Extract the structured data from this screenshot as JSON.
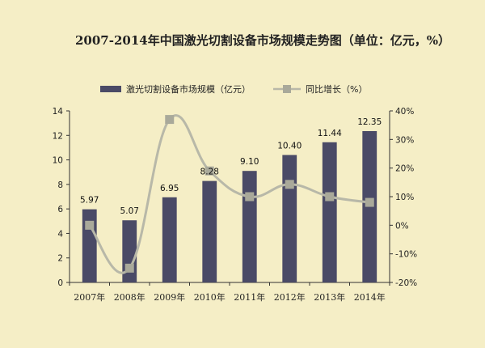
{
  "chart_data": {
    "type": "bar",
    "title": "2007-2014年中国激光切割设备市场规模走势图（单位：亿元，%）",
    "categories": [
      "2007年",
      "2008年",
      "2009年",
      "2010年",
      "2011年",
      "2012年",
      "2013年",
      "2014年"
    ],
    "series": [
      {
        "name": "激光切割设备市场规模（亿元）",
        "type": "bar",
        "axis": "left",
        "color": "#4a4a66",
        "values": [
          5.97,
          5.07,
          6.95,
          8.28,
          9.1,
          10.4,
          11.44,
          12.35
        ],
        "labels": [
          "5.97",
          "5.07",
          "6.95",
          "8.28",
          "9.10",
          "10.40",
          "11.44",
          "12.35"
        ]
      },
      {
        "name": "同比增长（%）",
        "type": "line",
        "smooth": true,
        "axis": "right",
        "color": "#b8b8a8",
        "marker_color": "#a9a99a",
        "values": [
          0,
          -15,
          37,
          19,
          10,
          14.3,
          10,
          8
        ]
      }
    ],
    "y_left": {
      "ylim": [
        0,
        14
      ],
      "ticks": [
        0,
        2,
        4,
        6,
        8,
        10,
        12,
        14
      ],
      "tick_labels": [
        "0",
        "2",
        "4",
        "6",
        "8",
        "10",
        "12",
        "14"
      ]
    },
    "y_right": {
      "ylim": [
        -20,
        40
      ],
      "ticks": [
        -20,
        -10,
        0,
        10,
        20,
        30,
        40
      ],
      "tick_labels": [
        "-20%",
        "-10%",
        "0%",
        "10%",
        "20%",
        "30%",
        "40%"
      ]
    },
    "legend_position": "top",
    "grid": false
  }
}
